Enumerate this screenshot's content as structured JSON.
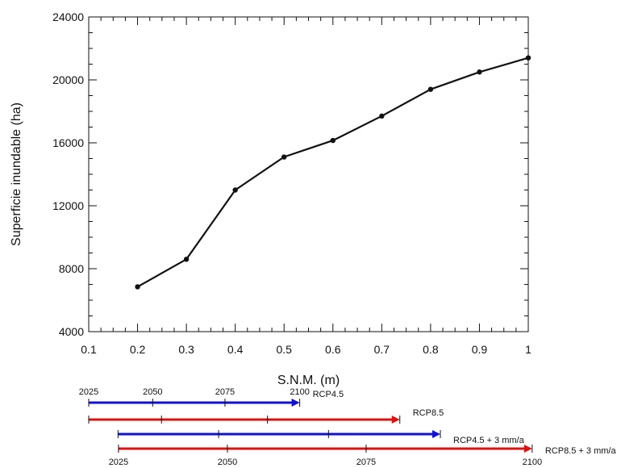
{
  "chart_data": {
    "type": "line",
    "title": "",
    "xlabel": "S.N.M. (m)",
    "ylabel": "Superficie inundable (ha)",
    "xlim": [
      0.1,
      1.0
    ],
    "ylim": [
      4000,
      24000
    ],
    "x_ticks": [
      0.1,
      0.2,
      0.3,
      0.4,
      0.5,
      0.6,
      0.7,
      0.8,
      0.9,
      1.0
    ],
    "x_tick_labels": [
      "0.1",
      "0.2",
      "0.3",
      "0.4",
      "0.5",
      "0.6",
      "0.7",
      "0.8",
      "0.9",
      "1"
    ],
    "y_ticks": [
      4000,
      8000,
      12000,
      16000,
      20000,
      24000
    ],
    "y_tick_labels": [
      "4000",
      "8000",
      "12000",
      "16000",
      "20000",
      "24000"
    ],
    "grid": false,
    "series": [
      {
        "x": [
          0.2,
          0.3,
          0.4,
          0.5,
          0.6,
          0.7,
          0.8,
          0.9,
          1.0
        ],
        "values": [
          6850,
          8600,
          13000,
          15100,
          16150,
          17700,
          19400,
          20500,
          21400
        ],
        "color": "#111111"
      }
    ],
    "scenario_timelines": [
      {
        "label": "RCP4.5",
        "color": "#1010d8",
        "years": [
          2025,
          2050,
          2075,
          2100
        ],
        "sea_level_m": [
          0.1,
          0.231,
          0.379,
          0.532
        ]
      },
      {
        "label": "RCP8.5",
        "color": "#e01010",
        "years": [
          2025,
          2050,
          2075,
          2100
        ],
        "sea_level_m": [
          0.1,
          0.249,
          0.466,
          0.737
        ]
      },
      {
        "label": "RCP4.5 + 3 mm/a",
        "color": "#1010d8",
        "years": [
          2025,
          2050,
          2075,
          2100
        ],
        "sea_level_m": [
          0.16,
          0.366,
          0.591,
          0.82
        ]
      },
      {
        "label": "RCP8.5 + 3 mm/a",
        "color": "#e01010",
        "years": [
          2025,
          2050,
          2075,
          2100
        ],
        "sea_level_m": [
          0.161,
          0.384,
          0.668,
          1.008
        ]
      }
    ],
    "scenario_year_labels_top": [
      "2025",
      "2050",
      "2075",
      "2100"
    ],
    "scenario_year_labels_bottom": [
      "2025",
      "2050",
      "2075",
      "2100"
    ]
  }
}
